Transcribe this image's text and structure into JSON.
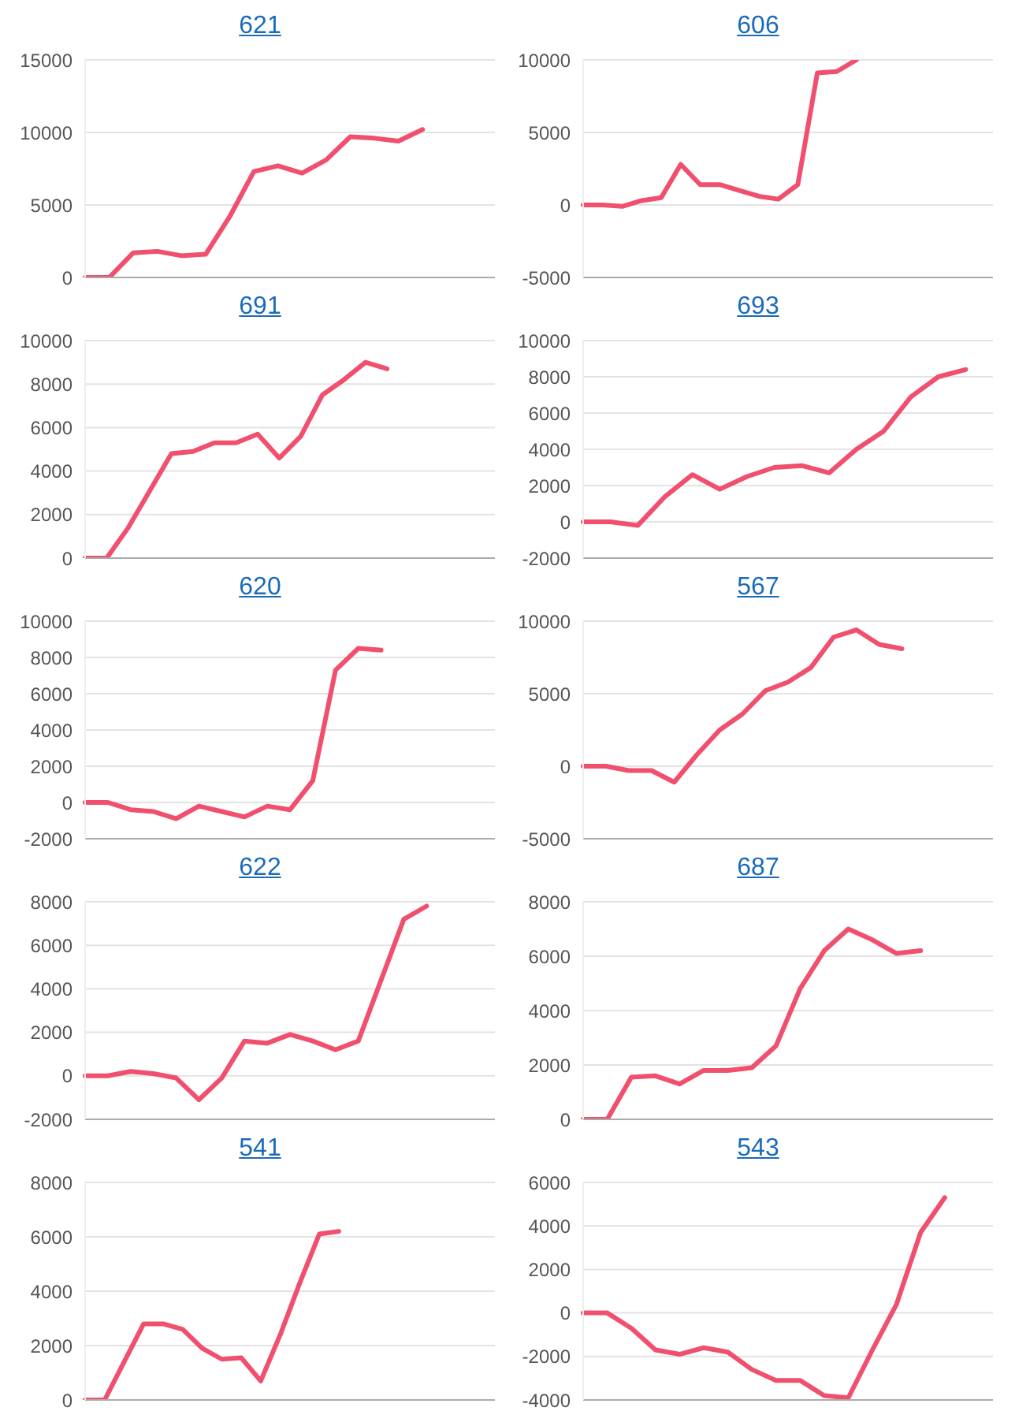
{
  "chart_data": [
    {
      "type": "line",
      "title": "621",
      "categories": [
        null,
        null,
        null,
        null,
        null,
        null,
        null,
        null,
        null,
        null,
        null,
        null,
        null,
        null,
        null,
        null,
        null,
        null
      ],
      "values": [
        0,
        0,
        1700,
        1800,
        1500,
        1600,
        4200,
        7300,
        7700,
        7200,
        8100,
        9700,
        9600,
        9400,
        10200,
        null,
        null,
        null
      ],
      "color": "#f0506e",
      "ylim": [
        0,
        15000
      ],
      "yticks": [
        0,
        5000,
        10000,
        15000
      ],
      "grid": "y",
      "tick_labels": "y",
      "marker": "none",
      "line_style": "solid"
    },
    {
      "type": "line",
      "title": "606",
      "categories": [
        null,
        null,
        null,
        null,
        null,
        null,
        null,
        null,
        null,
        null,
        null,
        null,
        null,
        null,
        null,
        null,
        null,
        null,
        null,
        null,
        null,
        null
      ],
      "values": [
        0,
        0,
        -100,
        300,
        500,
        2800,
        1400,
        1400,
        1000,
        600,
        400,
        1400,
        9100,
        9200,
        10000,
        null,
        null,
        null,
        null,
        null,
        null,
        null
      ],
      "color": "#f0506e",
      "ylim": [
        -5000,
        10000
      ],
      "yticks": [
        -5000,
        0,
        5000,
        10000
      ],
      "grid": "y",
      "tick_labels": "y",
      "marker": "none",
      "line_style": "solid"
    },
    {
      "type": "line",
      "title": "691",
      "categories": [
        null,
        null,
        null,
        null,
        null,
        null,
        null,
        null,
        null,
        null,
        null,
        null,
        null,
        null,
        null,
        null,
        null,
        null,
        null,
        null
      ],
      "values": [
        0,
        0,
        1400,
        3100,
        4800,
        4900,
        5300,
        5300,
        5700,
        4600,
        5600,
        7500,
        8200,
        9000,
        8700,
        null,
        null,
        null,
        null,
        null
      ],
      "color": "#f0506e",
      "ylim": [
        0,
        10000
      ],
      "yticks": [
        0,
        2000,
        4000,
        6000,
        8000,
        10000
      ],
      "grid": "y",
      "tick_labels": "y",
      "marker": "none",
      "line_style": "solid"
    },
    {
      "type": "line",
      "title": "693",
      "categories": [
        null,
        null,
        null,
        null,
        null,
        null,
        null,
        null,
        null,
        null,
        null,
        null,
        null,
        null,
        null,
        null
      ],
      "values": [
        0,
        0,
        -200,
        1400,
        2600,
        1800,
        2500,
        3000,
        3100,
        2700,
        4000,
        5000,
        6900,
        8000,
        8400,
        null
      ],
      "color": "#f0506e",
      "ylim": [
        -2000,
        10000
      ],
      "yticks": [
        -2000,
        0,
        2000,
        4000,
        6000,
        8000,
        10000
      ],
      "grid": "y",
      "tick_labels": "y",
      "marker": "none",
      "line_style": "solid"
    },
    {
      "type": "line",
      "title": "620",
      "categories": [
        null,
        null,
        null,
        null,
        null,
        null,
        null,
        null,
        null,
        null,
        null,
        null,
        null,
        null,
        null,
        null,
        null,
        null,
        null
      ],
      "values": [
        0,
        0,
        -400,
        -500,
        -900,
        -200,
        -500,
        -800,
        -200,
        -400,
        1200,
        7300,
        8500,
        8400,
        null,
        null,
        null,
        null,
        null
      ],
      "color": "#f0506e",
      "ylim": [
        -2000,
        10000
      ],
      "yticks": [
        -2000,
        0,
        2000,
        4000,
        6000,
        8000,
        10000
      ],
      "grid": "y",
      "tick_labels": "y",
      "marker": "none",
      "line_style": "solid"
    },
    {
      "type": "line",
      "title": "567",
      "categories": [
        null,
        null,
        null,
        null,
        null,
        null,
        null,
        null,
        null,
        null,
        null,
        null,
        null,
        null,
        null,
        null,
        null,
        null,
        null
      ],
      "values": [
        0,
        0,
        -300,
        -300,
        -1100,
        800,
        2500,
        3600,
        5200,
        5800,
        6800,
        8900,
        9400,
        8400,
        8100,
        null,
        null,
        null,
        null
      ],
      "color": "#f0506e",
      "ylim": [
        -5000,
        10000
      ],
      "yticks": [
        -5000,
        0,
        5000,
        10000
      ],
      "grid": "y",
      "tick_labels": "y",
      "marker": "none",
      "line_style": "solid"
    },
    {
      "type": "line",
      "title": "622",
      "categories": [
        null,
        null,
        null,
        null,
        null,
        null,
        null,
        null,
        null,
        null,
        null,
        null,
        null,
        null,
        null,
        null,
        null,
        null,
        null
      ],
      "values": [
        0,
        0,
        200,
        100,
        -100,
        -1100,
        -100,
        1600,
        1500,
        1900,
        1600,
        1200,
        1600,
        4400,
        7200,
        7800,
        null,
        null,
        null
      ],
      "color": "#f0506e",
      "ylim": [
        -2000,
        8000
      ],
      "yticks": [
        -2000,
        0,
        2000,
        4000,
        6000,
        8000
      ],
      "grid": "y",
      "tick_labels": "y",
      "marker": "none",
      "line_style": "solid"
    },
    {
      "type": "line",
      "title": "687",
      "categories": [
        null,
        null,
        null,
        null,
        null,
        null,
        null,
        null,
        null,
        null,
        null,
        null,
        null,
        null,
        null,
        null,
        null,
        null
      ],
      "values": [
        0,
        0,
        1550,
        1600,
        1300,
        1800,
        1800,
        1900,
        2700,
        4800,
        6200,
        7000,
        6600,
        6100,
        6200,
        null,
        null,
        null
      ],
      "color": "#f0506e",
      "ylim": [
        0,
        8000
      ],
      "yticks": [
        0,
        2000,
        4000,
        6000,
        8000
      ],
      "grid": "y",
      "tick_labels": "y",
      "marker": "none",
      "line_style": "solid"
    },
    {
      "type": "line",
      "title": "541",
      "categories": [
        null,
        null,
        null,
        null,
        null,
        null,
        null,
        null,
        null,
        null,
        null,
        null,
        null,
        null,
        null,
        null,
        null,
        null,
        null,
        null,
        null,
        null
      ],
      "values": [
        0,
        0,
        1400,
        2800,
        2800,
        2600,
        1900,
        1500,
        1550,
        700,
        2400,
        4300,
        6100,
        6200,
        null,
        null,
        null,
        null,
        null,
        null,
        null,
        null
      ],
      "color": "#f0506e",
      "ylim": [
        0,
        8000
      ],
      "yticks": [
        0,
        2000,
        4000,
        6000,
        8000
      ],
      "grid": "y",
      "tick_labels": "y",
      "marker": "none",
      "line_style": "solid"
    },
    {
      "type": "line",
      "title": "543",
      "categories": [
        null,
        null,
        null,
        null,
        null,
        null,
        null,
        null,
        null,
        null,
        null,
        null,
        null,
        null,
        null,
        null,
        null,
        null
      ],
      "values": [
        0,
        0,
        -700,
        -1700,
        -1900,
        -1600,
        -1800,
        -2600,
        -3100,
        -3100,
        -3800,
        -3900,
        -1700,
        400,
        3700,
        5300,
        null,
        null
      ],
      "color": "#f0506e",
      "ylim": [
        -4000,
        6000
      ],
      "yticks": [
        -4000,
        -2000,
        0,
        2000,
        4000,
        6000
      ],
      "grid": "y",
      "tick_labels": "y",
      "marker": "none",
      "line_style": "solid"
    }
  ]
}
